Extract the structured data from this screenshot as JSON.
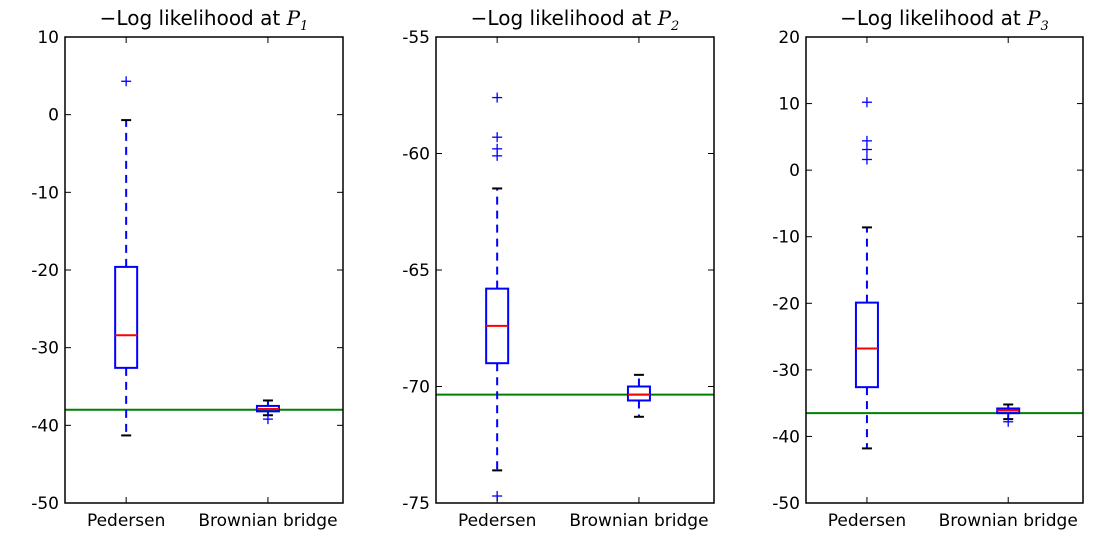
{
  "chart_data": [
    {
      "type": "box",
      "title": "−Log likelihood at P1",
      "title_prefix": "−Log likelihood at ",
      "title_var": "P",
      "title_sub": "1",
      "categories": [
        "Pedersen",
        "Brownian bridge"
      ],
      "ylim": [
        -50,
        10
      ],
      "yticks": [
        10,
        0,
        -10,
        -20,
        -30,
        -40,
        -50
      ],
      "reference_line": -38,
      "boxes": [
        {
          "label": "Pedersen",
          "whisker_low": -41.3,
          "q1": -32.6,
          "median": -28.4,
          "q3": -19.6,
          "whisker_high": -0.7,
          "fliers": [
            4.3
          ]
        },
        {
          "label": "Brownian bridge",
          "whisker_low": -38.7,
          "q1": -38.2,
          "median": -37.9,
          "q3": -37.5,
          "whisker_high": -36.8,
          "fliers": [
            -39.2
          ]
        }
      ]
    },
    {
      "type": "box",
      "title": "−Log likelihood at P2",
      "title_prefix": "−Log likelihood at ",
      "title_var": "P",
      "title_sub": "2",
      "categories": [
        "Pedersen",
        "Brownian bridge"
      ],
      "ylim": [
        -75,
        -55
      ],
      "yticks": [
        -55,
        -60,
        -65,
        -70,
        -75
      ],
      "reference_line": -70.35,
      "boxes": [
        {
          "label": "Pedersen",
          "whisker_low": -73.6,
          "q1": -69.0,
          "median": -67.4,
          "q3": -65.8,
          "whisker_high": -61.5,
          "fliers": [
            -57.6,
            -59.3,
            -59.8,
            -60.1,
            -74.7
          ]
        },
        {
          "label": "Brownian bridge",
          "whisker_low": -71.3,
          "q1": -70.6,
          "median": -70.35,
          "q3": -70.0,
          "whisker_high": -69.5,
          "fliers": []
        }
      ]
    },
    {
      "type": "box",
      "title": "−Log likelihood at P3",
      "title_prefix": "−Log likelihood at ",
      "title_var": "P",
      "title_sub": "3",
      "categories": [
        "Pedersen",
        "Brownian bridge"
      ],
      "ylim": [
        -50,
        20
      ],
      "yticks": [
        20,
        10,
        0,
        -10,
        -20,
        -30,
        -40,
        -50
      ],
      "reference_line": -36.5,
      "boxes": [
        {
          "label": "Pedersen",
          "whisker_low": -41.8,
          "q1": -32.6,
          "median": -26.8,
          "q3": -19.9,
          "whisker_high": -8.6,
          "fliers": [
            10.2,
            4.4,
            3.1,
            1.6
          ]
        },
        {
          "label": "Brownian bridge",
          "whisker_low": -37.4,
          "q1": -36.5,
          "median": -36.1,
          "q3": -35.8,
          "whisker_high": -35.2,
          "fliers": [
            -37.8
          ]
        }
      ]
    }
  ],
  "colors": {
    "box": "#0000ff",
    "median": "#ff0000",
    "flier": "#0000ff",
    "reference_line": "#008000",
    "cap": "#000000",
    "axes": "#000000"
  }
}
